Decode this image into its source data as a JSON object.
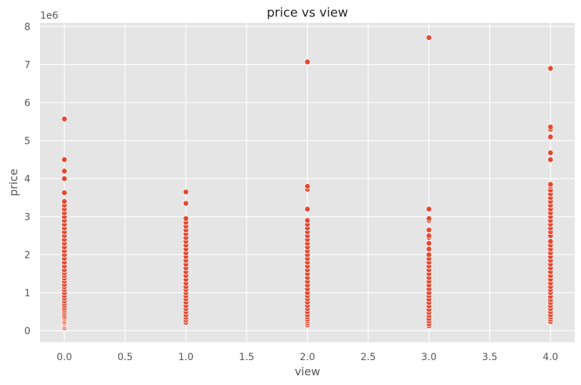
{
  "chart_data": {
    "type": "scatter",
    "title": "price vs view",
    "xlabel": "view",
    "ylabel": "price",
    "y_offset_label": "1e6",
    "xlim": [
      -0.2,
      4.2
    ],
    "ylim": [
      -0.3,
      8.1
    ],
    "y_scale_multiplier": 1000000,
    "xticks": [
      0.0,
      0.5,
      1.0,
      1.5,
      2.0,
      2.5,
      3.0,
      3.5,
      4.0
    ],
    "xtick_labels": [
      "0.0",
      "0.5",
      "1.0",
      "1.5",
      "2.0",
      "2.5",
      "3.0",
      "3.5",
      "4.0"
    ],
    "yticks": [
      0,
      1,
      2,
      3,
      4,
      5,
      6,
      7,
      8
    ],
    "ytick_labels": [
      "0",
      "1",
      "2",
      "3",
      "4",
      "5",
      "6",
      "7",
      "8"
    ],
    "grid": true,
    "background": "#e5e5e5",
    "grid_color": "#ffffff",
    "marker_color": "#e24a33",
    "points": [
      {
        "x": 0,
        "y": [
          0.08,
          0.12,
          0.15,
          0.18,
          0.2,
          0.23,
          0.26,
          0.3,
          0.33,
          0.36,
          0.4,
          0.45,
          0.5,
          0.55,
          0.6,
          0.66,
          0.72,
          0.78,
          0.85,
          0.92,
          1.0,
          1.08,
          1.15,
          1.22,
          1.3,
          1.38,
          1.45,
          1.52,
          1.6,
          1.7,
          1.8,
          1.9,
          2.0,
          2.1,
          2.2,
          2.3,
          2.4,
          2.5,
          2.6,
          2.7,
          2.8,
          2.9,
          3.0,
          3.1,
          3.2,
          3.3,
          3.4,
          3.63,
          4.0,
          4.2,
          4.5,
          5.57
        ]
      },
      {
        "x": 1,
        "y": [
          0.22,
          0.28,
          0.35,
          0.42,
          0.5,
          0.58,
          0.66,
          0.75,
          0.84,
          0.92,
          1.0,
          1.08,
          1.16,
          1.25,
          1.35,
          1.45,
          1.55,
          1.65,
          1.75,
          1.85,
          1.95,
          2.05,
          2.15,
          2.25,
          2.35,
          2.45,
          2.55,
          2.65,
          2.75,
          2.85,
          2.95,
          3.35,
          3.65
        ]
      },
      {
        "x": 2,
        "y": [
          0.15,
          0.2,
          0.25,
          0.3,
          0.36,
          0.42,
          0.5,
          0.58,
          0.66,
          0.75,
          0.84,
          0.92,
          1.0,
          1.1,
          1.2,
          1.3,
          1.4,
          1.5,
          1.6,
          1.7,
          1.8,
          1.9,
          2.0,
          2.1,
          2.2,
          2.3,
          2.4,
          2.5,
          2.6,
          2.7,
          2.8,
          2.9,
          3.2,
          3.72,
          3.8,
          7.07
        ]
      },
      {
        "x": 3,
        "y": [
          0.13,
          0.18,
          0.25,
          0.32,
          0.4,
          0.48,
          0.56,
          0.65,
          0.74,
          0.83,
          0.92,
          1.0,
          1.1,
          1.2,
          1.3,
          1.4,
          1.5,
          1.6,
          1.7,
          1.8,
          1.9,
          2.0,
          2.15,
          2.3,
          2.45,
          2.5,
          2.65,
          2.9,
          2.95,
          3.2,
          7.71
        ]
      },
      {
        "x": 4,
        "y": [
          0.24,
          0.3,
          0.36,
          0.42,
          0.5,
          0.58,
          0.66,
          0.74,
          0.82,
          0.9,
          1.0,
          1.08,
          1.16,
          1.25,
          1.35,
          1.45,
          1.55,
          1.65,
          1.75,
          1.85,
          1.95,
          2.05,
          2.15,
          2.25,
          2.35,
          2.5,
          2.6,
          2.7,
          2.8,
          2.9,
          3.0,
          3.1,
          3.2,
          3.3,
          3.4,
          3.5,
          3.6,
          3.7,
          3.8,
          3.85,
          4.5,
          4.68,
          5.1,
          5.3,
          5.36,
          6.9
        ]
      }
    ]
  }
}
